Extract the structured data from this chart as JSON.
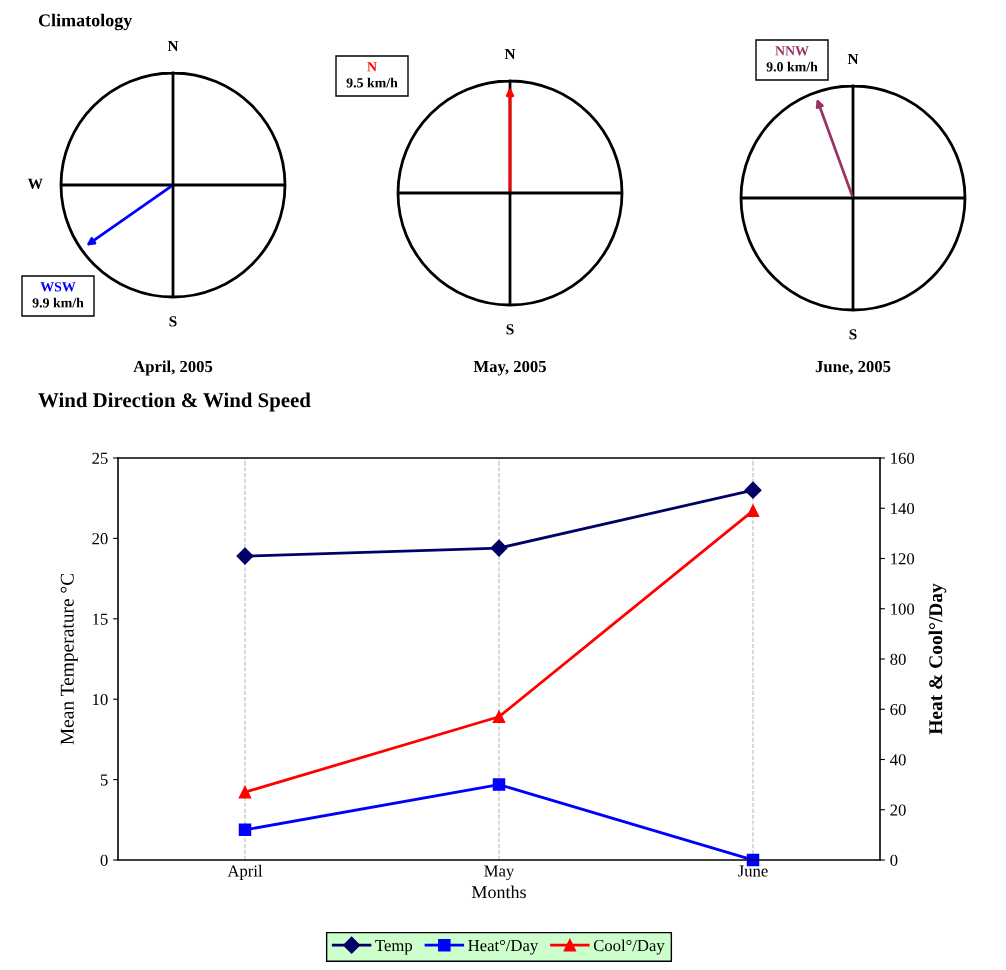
{
  "chart_data": [
    {
      "type": "other",
      "title": "Climatology",
      "categories": [
        "N",
        null,
        "S",
        "W"
      ],
      "xlabel": "April, 2005",
      "annotations": [
        "WSW",
        "9.9 km/h"
      ]
    },
    {
      "type": "other",
      "categories": [
        "N",
        null,
        "S",
        null
      ],
      "xlabel": "May, 2005",
      "annotations": [
        "N",
        "9.5 km/h"
      ]
    },
    {
      "type": "other",
      "categories": [
        "N",
        null,
        "S",
        null
      ],
      "xlabel": "June, 2005",
      "annotations": [
        "NNW",
        "9.0 km/h"
      ]
    },
    {
      "type": "line",
      "title": "Wind Direction & Wind Speed",
      "categories": [
        "April",
        "May",
        "June"
      ],
      "xlabel": "Months",
      "ylabel": "Mean Temperature °C",
      "y2label": "Heat & Cool°/Day",
      "ylim": [
        0,
        25
      ],
      "yticks": [
        0,
        5,
        10,
        15,
        20,
        25
      ],
      "y2lim": [
        0,
        160
      ],
      "y2ticks": [
        0,
        20,
        40,
        60,
        80,
        100,
        120,
        140,
        160
      ],
      "grid": "x",
      "legend": "bottom",
      "series": [
        {
          "name": "Temp",
          "color": "#000066",
          "marker": "diamond",
          "values": [
            18.9,
            19.4,
            23.0
          ]
        },
        {
          "name": "Heat°/Day",
          "color": "#0000ff",
          "marker": "square",
          "axis": "y2",
          "values": [
            12,
            30,
            0
          ]
        },
        {
          "name": "Cool°/Day",
          "color": "#ff0000",
          "marker": "triangle",
          "axis": "y2",
          "values": [
            27,
            57,
            139
          ]
        }
      ]
    }
  ]
}
